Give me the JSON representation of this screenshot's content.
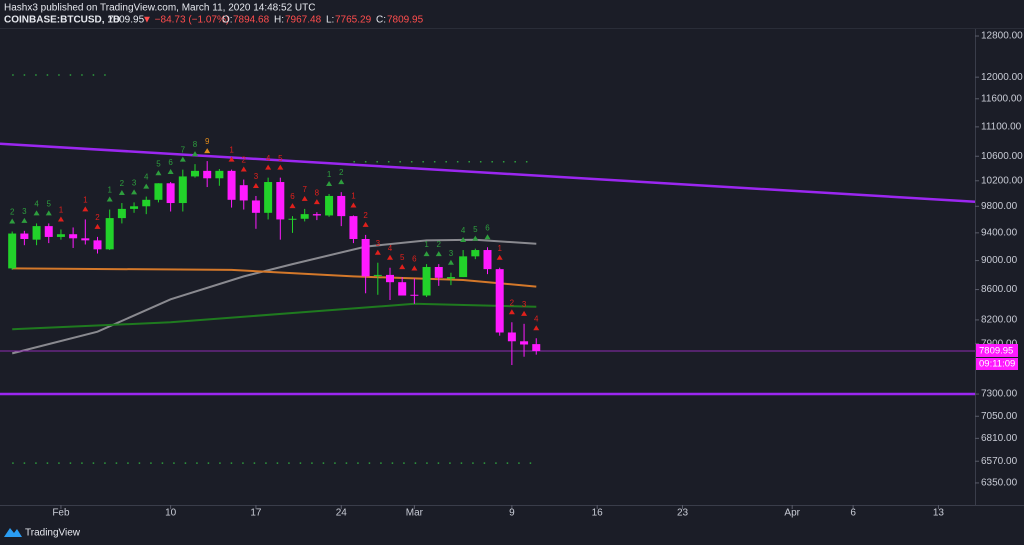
{
  "header": {
    "byline": "Hashx3 published on TradingView.com, March 11, 2020 14:48:52 UTC",
    "symbol": "COINBASE:BTCUSD, 1D",
    "price": "7809.95",
    "change": "▼ −84.73 (−1.07%)",
    "o_label": "O:",
    "o": "7894.68",
    "h_label": "H:",
    "h": "7967.48",
    "l_label": "L:",
    "l": "7765.29",
    "c_label": "C:",
    "c": "7809.95"
  },
  "footer": {
    "brand": "TradingView"
  },
  "chart_data": {
    "type": "candlestick",
    "log_scale": true,
    "up_color": "#22d22a",
    "down_color": "#ff1aff",
    "x": [
      "2020-01-28",
      "2020-01-29",
      "2020-01-30",
      "2020-01-31",
      "2020-02-01",
      "2020-02-02",
      "2020-02-03",
      "2020-02-04",
      "2020-02-05",
      "2020-02-06",
      "2020-02-07",
      "2020-02-08",
      "2020-02-09",
      "2020-02-10",
      "2020-02-11",
      "2020-02-12",
      "2020-02-13",
      "2020-02-14",
      "2020-02-15",
      "2020-02-16",
      "2020-02-17",
      "2020-02-18",
      "2020-02-19",
      "2020-02-20",
      "2020-02-21",
      "2020-02-22",
      "2020-02-23",
      "2020-02-24",
      "2020-02-25",
      "2020-02-26",
      "2020-02-27",
      "2020-02-28",
      "2020-02-29",
      "2020-03-01",
      "2020-03-02",
      "2020-03-03",
      "2020-03-04",
      "2020-03-05",
      "2020-03-06",
      "2020-03-07",
      "2020-03-08",
      "2020-03-09",
      "2020-03-10",
      "2020-03-11"
    ],
    "open": [
      8890,
      9390,
      9300,
      9500,
      9340,
      9380,
      9320,
      9290,
      9160,
      9620,
      9760,
      9800,
      9900,
      10160,
      9850,
      10270,
      10360,
      10240,
      10360,
      10130,
      9890,
      9700,
      10180,
      9600,
      9610,
      9680,
      9660,
      9960,
      9650,
      9310,
      8790,
      8800,
      8700,
      8530,
      8520,
      8910,
      8750,
      8770,
      9060,
      9150,
      8880,
      8040,
      7930,
      7894.68
    ],
    "high": [
      9420,
      9430,
      9540,
      9540,
      9450,
      9480,
      9600,
      9340,
      9750,
      9850,
      9860,
      9950,
      10160,
      10180,
      10380,
      10470,
      10520,
      10390,
      10380,
      10220,
      9960,
      10250,
      10250,
      9650,
      9760,
      9710,
      9990,
      10020,
      9660,
      9370,
      8970,
      8900,
      8770,
      8750,
      8950,
      8950,
      8830,
      9150,
      9170,
      9190,
      8900,
      8170,
      8150,
      7967.48
    ],
    "low": [
      8870,
      9220,
      9220,
      9250,
      9300,
      9180,
      9230,
      9100,
      9150,
      9540,
      9700,
      9680,
      9860,
      9720,
      9720,
      10250,
      10100,
      10120,
      9780,
      9750,
      9460,
      9600,
      9300,
      9400,
      9570,
      9590,
      9640,
      9500,
      9250,
      8550,
      8530,
      8460,
      8530,
      8410,
      8500,
      8650,
      8660,
      8770,
      9020,
      8810,
      8000,
      7640,
      7740,
      7765.29
    ],
    "close": [
      9390,
      9310,
      9500,
      9340,
      9380,
      9320,
      9290,
      9160,
      9620,
      9760,
      9800,
      9900,
      10160,
      9850,
      10270,
      10360,
      10240,
      10360,
      9900,
      9890,
      9700,
      10180,
      9600,
      9610,
      9680,
      9660,
      9960,
      9650,
      9310,
      8780,
      8800,
      8700,
      8520,
      8520,
      8910,
      8760,
      8770,
      9060,
      9150,
      8880,
      8040,
      7930,
      7890,
      7809.95
    ],
    "last_price_label": "7809.95",
    "countdown": "09:11:09",
    "price_line_color": "#8e2bb0",
    "xlim": [
      "2020-01-27",
      "2020-04-16"
    ],
    "xticks": [
      {
        "value": "2020-02-01",
        "label": "Feb"
      },
      {
        "value": "2020-02-10",
        "label": "10"
      },
      {
        "value": "2020-02-17",
        "label": "17"
      },
      {
        "value": "2020-02-24",
        "label": "24"
      },
      {
        "value": "2020-03-01",
        "label": "Mar"
      },
      {
        "value": "2020-03-09",
        "label": "9"
      },
      {
        "value": "2020-03-16",
        "label": "16"
      },
      {
        "value": "2020-03-23",
        "label": "23"
      },
      {
        "value": "2020-04-01",
        "label": "Apr"
      },
      {
        "value": "2020-04-06",
        "label": "6"
      },
      {
        "value": "2020-04-13",
        "label": "13"
      }
    ],
    "ylim": [
      6134,
      12962
    ],
    "yticks": [
      {
        "value": 12800,
        "label": "12800.00"
      },
      {
        "value": 12000,
        "label": "12000.00"
      },
      {
        "value": 11600,
        "label": "11600.00"
      },
      {
        "value": 11100,
        "label": "11100.00"
      },
      {
        "value": 10600,
        "label": "10600.00"
      },
      {
        "value": 10200,
        "label": "10200.00"
      },
      {
        "value": 9800,
        "label": "9800.00"
      },
      {
        "value": 9400,
        "label": "9400.00"
      },
      {
        "value": 9000,
        "label": "9000.00"
      },
      {
        "value": 8600,
        "label": "8600.00"
      },
      {
        "value": 8200,
        "label": "8200.00"
      },
      {
        "value": 7900,
        "label": "7900.00"
      },
      {
        "value": 7300,
        "label": "7300.00"
      },
      {
        "value": 7050,
        "label": "7050.00"
      },
      {
        "value": 6810,
        "label": "6810.00"
      },
      {
        "value": 6570,
        "label": "6570.00"
      },
      {
        "value": 6350,
        "label": "6350.00"
      }
    ],
    "lines": [
      {
        "color": "#8a8a90",
        "x": [
          "2020-01-28",
          "2020-02-04",
          "2020-02-10",
          "2020-02-16",
          "2020-02-20",
          "2020-02-26",
          "2020-03-02",
          "2020-03-06",
          "2020-03-11"
        ],
        "values": [
          7780,
          8050,
          8470,
          8780,
          8950,
          9200,
          9290,
          9300,
          9240
        ]
      },
      {
        "color": "#d4782a",
        "x": [
          "2020-01-28",
          "2020-02-15",
          "2020-02-25",
          "2020-03-05",
          "2020-03-11"
        ],
        "values": [
          8890,
          8870,
          8780,
          8730,
          8640
        ]
      },
      {
        "color": "#1f7a1f",
        "x": [
          "2020-01-28",
          "2020-02-10",
          "2020-02-20",
          "2020-03-01",
          "2020-03-11"
        ],
        "values": [
          8080,
          8170,
          8290,
          8410,
          8370
        ]
      }
    ],
    "trendlines": [
      {
        "color": "#9b27f0",
        "x": [
          "2020-01-27",
          "2020-04-16"
        ],
        "values": [
          10810,
          9870
        ]
      },
      {
        "color": "#9b27f0",
        "x": [
          "2020-01-27",
          "2020-04-16"
        ],
        "values": [
          7300,
          7300
        ]
      }
    ],
    "levels": [
      {
        "color": "#2e9e3e",
        "from": "2020-01-28",
        "to": "2020-02-05",
        "value": 12040
      },
      {
        "color": "#2e9e3e",
        "from": "2020-02-25",
        "to": "2020-03-11",
        "value": 10510
      },
      {
        "color": "#2e9e3e",
        "from": "2020-01-28",
        "to": "2020-03-11",
        "value": 6550
      }
    ],
    "td_labels": [
      {
        "x": "2020-01-28",
        "label": "2",
        "color": "#2e9e3e"
      },
      {
        "x": "2020-01-29",
        "label": "3",
        "color": "#2e9e3e"
      },
      {
        "x": "2020-01-30",
        "label": "4",
        "color": "#2e9e3e"
      },
      {
        "x": "2020-01-31",
        "label": "5",
        "color": "#2e9e3e"
      },
      {
        "x": "2020-02-01",
        "label": "1",
        "color": "#e0201c"
      },
      {
        "x": "2020-02-03",
        "label": "1",
        "color": "#e0201c"
      },
      {
        "x": "2020-02-04",
        "label": "2",
        "color": "#e0201c"
      },
      {
        "x": "2020-02-05",
        "label": "1",
        "color": "#2e9e3e"
      },
      {
        "x": "2020-02-06",
        "label": "2",
        "color": "#2e9e3e"
      },
      {
        "x": "2020-02-07",
        "label": "3",
        "color": "#2e9e3e"
      },
      {
        "x": "2020-02-08",
        "label": "4",
        "color": "#2e9e3e"
      },
      {
        "x": "2020-02-09",
        "label": "5",
        "color": "#2e9e3e"
      },
      {
        "x": "2020-02-10",
        "label": "6",
        "color": "#2e9e3e"
      },
      {
        "x": "2020-02-11",
        "label": "7",
        "color": "#2e9e3e"
      },
      {
        "x": "2020-02-12",
        "label": "8",
        "color": "#2e9e3e"
      },
      {
        "x": "2020-02-13",
        "label": "9",
        "color": "#e08a1c"
      },
      {
        "x": "2020-02-15",
        "label": "1",
        "color": "#e0201c"
      },
      {
        "x": "2020-02-16",
        "label": "2",
        "color": "#e0201c"
      },
      {
        "x": "2020-02-17",
        "label": "3",
        "color": "#e0201c"
      },
      {
        "x": "2020-02-18",
        "label": "4",
        "color": "#e0201c"
      },
      {
        "x": "2020-02-19",
        "label": "5",
        "color": "#e0201c"
      },
      {
        "x": "2020-02-20",
        "label": "6",
        "color": "#e0201c"
      },
      {
        "x": "2020-02-21",
        "label": "7",
        "color": "#e0201c"
      },
      {
        "x": "2020-02-22",
        "label": "8",
        "color": "#e0201c"
      },
      {
        "x": "2020-02-23",
        "label": "1",
        "color": "#2e9e3e"
      },
      {
        "x": "2020-02-24",
        "label": "2",
        "color": "#2e9e3e"
      },
      {
        "x": "2020-02-25",
        "label": "1",
        "color": "#e0201c"
      },
      {
        "x": "2020-02-26",
        "label": "2",
        "color": "#e0201c"
      },
      {
        "x": "2020-02-27",
        "label": "3",
        "color": "#e0201c"
      },
      {
        "x": "2020-02-28",
        "label": "4",
        "color": "#e0201c"
      },
      {
        "x": "2020-02-29",
        "label": "5",
        "color": "#e0201c"
      },
      {
        "x": "2020-03-01",
        "label": "6",
        "color": "#e0201c"
      },
      {
        "x": "2020-03-02",
        "label": "1",
        "color": "#2e9e3e"
      },
      {
        "x": "2020-03-03",
        "label": "2",
        "color": "#2e9e3e"
      },
      {
        "x": "2020-03-04",
        "label": "3",
        "color": "#2e9e3e"
      },
      {
        "x": "2020-03-05",
        "label": "4",
        "color": "#2e9e3e"
      },
      {
        "x": "2020-03-06",
        "label": "5",
        "color": "#2e9e3e"
      },
      {
        "x": "2020-03-07",
        "label": "6",
        "color": "#2e9e3e"
      },
      {
        "x": "2020-03-08",
        "label": "1",
        "color": "#e0201c"
      },
      {
        "x": "2020-03-09",
        "label": "2",
        "color": "#e0201c"
      },
      {
        "x": "2020-03-10",
        "label": "3",
        "color": "#e0201c"
      },
      {
        "x": "2020-03-11",
        "label": "4",
        "color": "#e0201c"
      }
    ]
  }
}
